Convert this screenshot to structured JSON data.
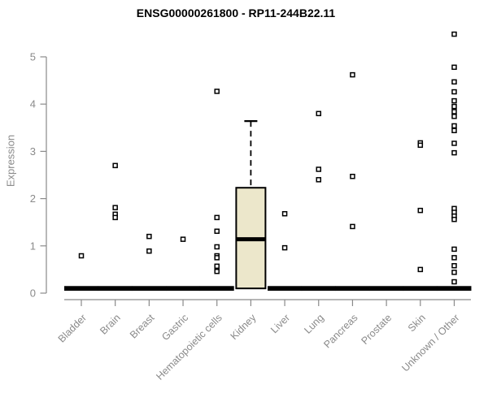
{
  "title": "ENSG00000261800 - RP11-244B22.11",
  "chart_data": {
    "type": "boxplot",
    "title": "ENSG00000261800 - RP11-244B22.11",
    "xlabel": "",
    "ylabel": "Expression",
    "ylim": [
      0,
      5
    ],
    "yticks": [
      0,
      1,
      2,
      3,
      4,
      5
    ],
    "grid": "off",
    "legend": "none",
    "categories": [
      "Bladder",
      "Brain",
      "Breast",
      "Gastric",
      "Hematopoietic cells",
      "Kidney",
      "Liver",
      "Lung",
      "Pancreas",
      "Prostate",
      "Skin",
      "Unknown / Other"
    ],
    "boxes": [
      {
        "category": "Bladder",
        "q1": 0.05,
        "median": 0.1,
        "q3": 0.15,
        "whisker_low": 0.05,
        "whisker_high": 0.15,
        "collapsed": true,
        "outliers": [
          0.79
        ]
      },
      {
        "category": "Brain",
        "q1": 0.05,
        "median": 0.1,
        "q3": 0.15,
        "whisker_low": 0.05,
        "whisker_high": 0.15,
        "collapsed": true,
        "outliers": [
          2.7,
          1.81,
          1.67,
          1.6
        ]
      },
      {
        "category": "Breast",
        "q1": 0.05,
        "median": 0.1,
        "q3": 0.15,
        "whisker_low": 0.05,
        "whisker_high": 0.15,
        "collapsed": true,
        "outliers": [
          1.2,
          0.89
        ]
      },
      {
        "category": "Gastric",
        "q1": 0.05,
        "median": 0.1,
        "q3": 0.15,
        "whisker_low": 0.05,
        "whisker_high": 0.15,
        "collapsed": true,
        "outliers": [
          1.14
        ]
      },
      {
        "category": "Hematopoietic cells",
        "q1": 0.05,
        "median": 0.1,
        "q3": 0.15,
        "whisker_low": 0.05,
        "whisker_high": 0.15,
        "collapsed": true,
        "outliers": [
          4.27,
          1.6,
          1.31,
          0.98,
          0.79,
          0.75,
          0.57,
          0.46
        ]
      },
      {
        "category": "Kidney",
        "q1": 0.1,
        "median": 1.14,
        "q3": 2.23,
        "whisker_low": 0.1,
        "whisker_high": 3.64,
        "collapsed": false,
        "outliers": []
      },
      {
        "category": "Liver",
        "q1": 0.05,
        "median": 0.1,
        "q3": 0.15,
        "whisker_low": 0.05,
        "whisker_high": 0.15,
        "collapsed": true,
        "outliers": [
          1.68,
          0.96
        ]
      },
      {
        "category": "Lung",
        "q1": 0.05,
        "median": 0.1,
        "q3": 0.15,
        "whisker_low": 0.05,
        "whisker_high": 0.15,
        "collapsed": true,
        "outliers": [
          3.8,
          2.62,
          2.4
        ]
      },
      {
        "category": "Pancreas",
        "q1": 0.05,
        "median": 0.1,
        "q3": 0.15,
        "whisker_low": 0.05,
        "whisker_high": 0.15,
        "collapsed": true,
        "outliers": [
          4.62,
          2.47,
          1.41
        ]
      },
      {
        "category": "Prostate",
        "q1": 0.05,
        "median": 0.1,
        "q3": 0.15,
        "whisker_low": 0.05,
        "whisker_high": 0.15,
        "collapsed": true,
        "outliers": []
      },
      {
        "category": "Skin",
        "q1": 0.05,
        "median": 0.1,
        "q3": 0.15,
        "whisker_low": 0.05,
        "whisker_high": 0.15,
        "collapsed": true,
        "outliers": [
          3.18,
          3.13,
          1.75,
          0.5
        ]
      },
      {
        "category": "Unknown / Other",
        "q1": 0.05,
        "median": 0.1,
        "q3": 0.15,
        "whisker_low": 0.05,
        "whisker_high": 0.15,
        "collapsed": true,
        "outliers": [
          5.48,
          4.78,
          4.47,
          4.26,
          4.07,
          3.95,
          3.84,
          3.74,
          3.54,
          3.44,
          3.17,
          2.97,
          1.79,
          1.71,
          1.63,
          1.56,
          0.93,
          0.75,
          0.58,
          0.44,
          0.24
        ]
      }
    ],
    "colors": {
      "box_fill": "#ece7cb",
      "box_border": "#000000",
      "median": "#000000",
      "outlier_fill": "#ffffff",
      "axis": "#8a8a8a",
      "tick_label": "#8a8a8a",
      "title": "#000000"
    }
  }
}
